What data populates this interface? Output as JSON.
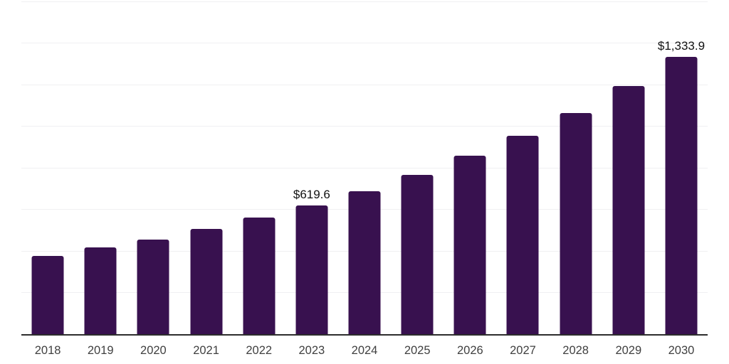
{
  "chart_data": {
    "type": "bar",
    "title": "",
    "categories": [
      "2018",
      "2019",
      "2020",
      "2021",
      "2022",
      "2023",
      "2024",
      "2025",
      "2026",
      "2027",
      "2028",
      "2029",
      "2030"
    ],
    "values": [
      377.4,
      417.2,
      454.8,
      507.2,
      561.8,
      619.6,
      688.0,
      766.6,
      857.8,
      955.4,
      1062.6,
      1193.4,
      1333.9
    ],
    "data_labels": [
      "",
      "",
      "",
      "",
      "",
      "$619.6",
      "",
      "",
      "",
      "",
      "",
      "",
      "$1,333.9"
    ],
    "xlabel": "",
    "ylabel": "",
    "ylim": [
      0,
      1600
    ],
    "grid_step": 200,
    "grid_on": true,
    "legend": "none",
    "colors": {
      "bar": "#38114f",
      "gridline": "#f0f0f2",
      "axis_line": "#2d2d2d",
      "tick_label": "#404040",
      "data_label": "#111111",
      "background": "#ffffff"
    }
  }
}
